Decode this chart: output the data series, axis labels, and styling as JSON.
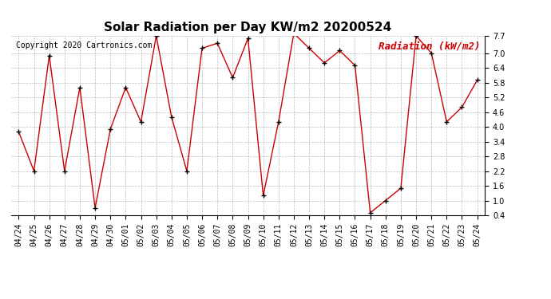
{
  "title": "Solar Radiation per Day KW/m2 20200524",
  "copyright_text": "Copyright 2020 Cartronics.com",
  "legend_label": "Radiation (kW/m2)",
  "dates": [
    "04/24",
    "04/25",
    "04/26",
    "04/27",
    "04/28",
    "04/29",
    "04/30",
    "05/01",
    "05/02",
    "05/03",
    "05/04",
    "05/05",
    "05/06",
    "05/07",
    "05/08",
    "05/09",
    "05/10",
    "05/11",
    "05/12",
    "05/13",
    "05/14",
    "05/15",
    "05/16",
    "05/17",
    "05/18",
    "05/19",
    "05/20",
    "05/21",
    "05/22",
    "05/23",
    "05/24"
  ],
  "values": [
    3.8,
    2.2,
    6.9,
    2.2,
    5.6,
    0.7,
    3.9,
    5.6,
    4.2,
    7.7,
    4.4,
    2.2,
    7.2,
    7.4,
    6.0,
    7.6,
    1.2,
    4.2,
    7.8,
    7.2,
    6.6,
    7.1,
    6.5,
    0.5,
    1.0,
    1.5,
    7.7,
    7.0,
    4.2,
    4.8,
    5.9
  ],
  "line_color": "#cc0000",
  "marker_color": "#000000",
  "bg_color": "#ffffff",
  "grid_color": "#aaaaaa",
  "title_color": "#000000",
  "legend_color": "#cc0000",
  "copyright_color": "#000000",
  "ylim": [
    0.4,
    7.7
  ],
  "yticks": [
    0.4,
    1.0,
    1.6,
    2.2,
    2.8,
    3.4,
    4.0,
    4.6,
    5.2,
    5.8,
    6.4,
    7.0,
    7.7
  ],
  "title_fontsize": 11,
  "tick_fontsize": 7,
  "legend_fontsize": 9,
  "copyright_fontsize": 7
}
